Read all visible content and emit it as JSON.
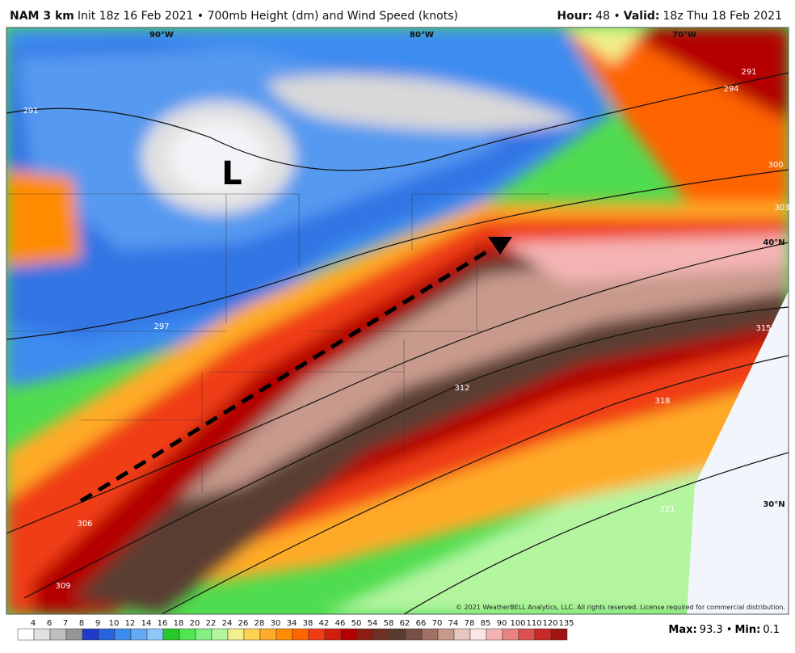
{
  "header": {
    "model": "NAM 3 km",
    "init": "Init 18z 16 Feb 2021 • 700mb Height (dm) and Wind Speed (knots)",
    "hour_label": "Hour:",
    "hour": "48 •",
    "valid_label": "Valid:",
    "valid": "18z Thu 18 Feb 2021"
  },
  "map": {
    "longitudes": [
      "90°W",
      "80°W",
      "70°W"
    ],
    "latitudes": [
      "40°N",
      "30°N"
    ],
    "contour_labels": [
      "291",
      "291",
      "294",
      "297",
      "300",
      "303",
      "306",
      "309",
      "312",
      "315",
      "318",
      "321"
    ],
    "low_marker": "L",
    "copyright": "© 2021 WeatherBELL Analytics, LLC. All rights reserved. License required for commercial distribution."
  },
  "colorbar": {
    "labels": [
      4,
      6,
      7,
      8,
      9,
      10,
      12,
      14,
      16,
      18,
      20,
      22,
      24,
      26,
      28,
      30,
      34,
      38,
      42,
      46,
      50,
      54,
      58,
      62,
      66,
      70,
      74,
      78,
      85,
      90,
      100,
      110,
      120,
      135
    ],
    "colors": [
      "#ffffff",
      "#e1e1e1",
      "#bebebe",
      "#969696",
      "#1e3cc8",
      "#2864dc",
      "#3c8cf0",
      "#64aaf5",
      "#8cc8fa",
      "#28c828",
      "#50e650",
      "#82f082",
      "#b4f5a0",
      "#f0f08c",
      "#ffd250",
      "#ffaa28",
      "#ff8c00",
      "#ff6400",
      "#f03c14",
      "#d21e0a",
      "#b40000",
      "#8c1e14",
      "#6e3228",
      "#5a3c32",
      "#785046",
      "#a07064",
      "#c89a8c",
      "#e6c8be",
      "#fae6e6",
      "#f5b4b4",
      "#eb8282",
      "#dc5050",
      "#c82828",
      "#a01414"
    ]
  },
  "stats": {
    "max_label": "Max:",
    "max": "93.3 •",
    "min_label": "Min:",
    "min": "0.1"
  }
}
